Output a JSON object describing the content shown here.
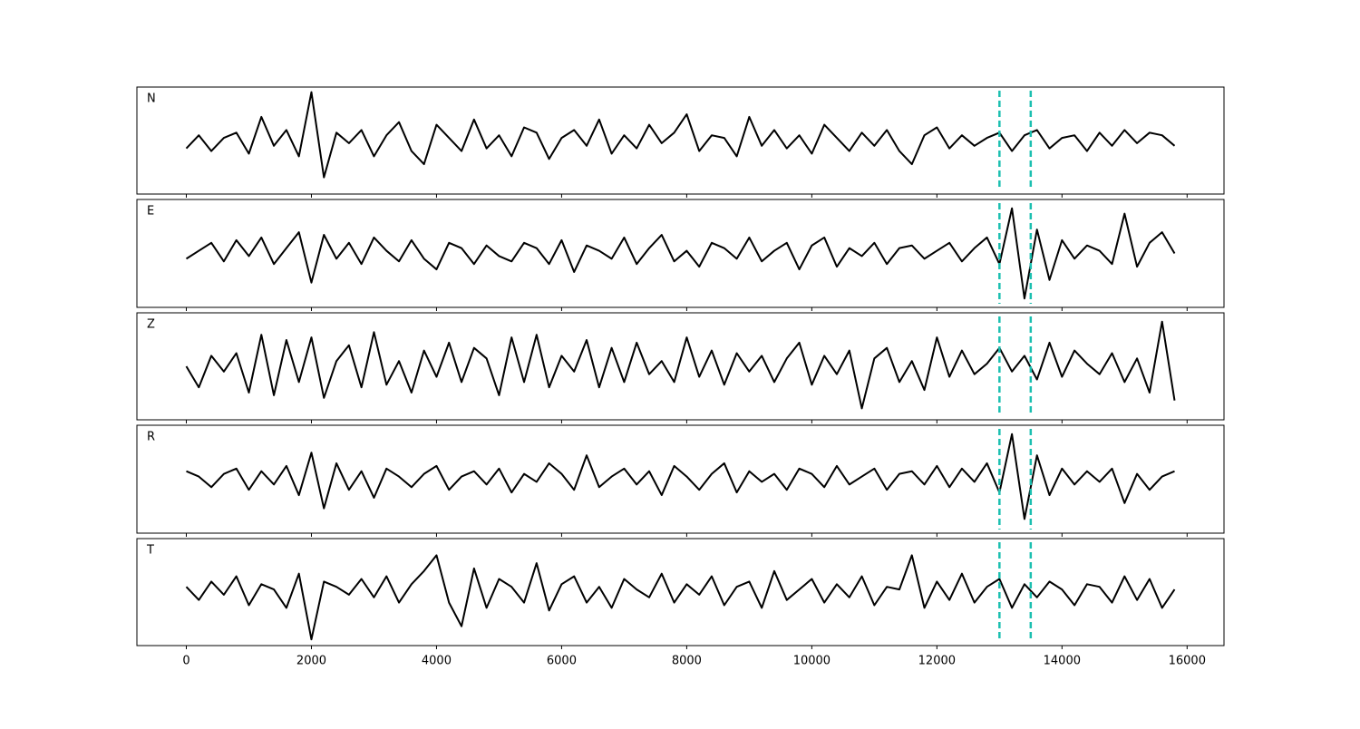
{
  "chart_data": {
    "type": "line",
    "x": [
      0,
      200,
      400,
      600,
      800,
      1000,
      1200,
      1400,
      1600,
      1800,
      2000,
      2200,
      2400,
      2600,
      2800,
      3000,
      3200,
      3400,
      3600,
      3800,
      4000,
      4200,
      4400,
      4600,
      4800,
      5000,
      5200,
      5400,
      5600,
      5800,
      6000,
      6200,
      6400,
      6600,
      6800,
      7000,
      7200,
      7400,
      7600,
      7800,
      8000,
      8200,
      8400,
      8600,
      8800,
      9000,
      9200,
      9400,
      9600,
      9800,
      10000,
      10200,
      10400,
      10600,
      10800,
      11000,
      11200,
      11400,
      11600,
      11800,
      12000,
      12200,
      12400,
      12600,
      12800,
      13000,
      13200,
      13400,
      13600,
      13800,
      14000,
      14200,
      14400,
      14600,
      14800,
      15000,
      15200,
      15400,
      15600,
      15800
    ],
    "xlim": [
      -790,
      16590
    ],
    "xticks": [
      0,
      2000,
      4000,
      6000,
      8000,
      10000,
      12000,
      14000,
      16000
    ],
    "ylim": [
      -1,
      1
    ],
    "color": "#000000",
    "markers": [
      13000,
      13500
    ],
    "marker_color": "#1bbfb0",
    "series": [
      {
        "name": "N",
        "values": [
          -0.15,
          0.1,
          -0.2,
          0.05,
          0.15,
          -0.25,
          0.45,
          -0.1,
          0.2,
          -0.3,
          0.92,
          -0.7,
          0.15,
          -0.05,
          0.2,
          -0.3,
          0.1,
          0.35,
          -0.2,
          -0.45,
          0.3,
          0.05,
          -0.2,
          0.4,
          -0.15,
          0.1,
          -0.3,
          0.25,
          0.15,
          -0.35,
          0.05,
          0.2,
          -0.1,
          0.4,
          -0.25,
          0.1,
          -0.15,
          0.3,
          -0.05,
          0.15,
          0.5,
          -0.2,
          0.1,
          0.05,
          -0.3,
          0.45,
          -0.1,
          0.2,
          -0.15,
          0.1,
          -0.25,
          0.3,
          0.05,
          -0.2,
          0.15,
          -0.1,
          0.2,
          -0.2,
          -0.45,
          0.1,
          0.25,
          -0.15,
          0.1,
          -0.1,
          0.05,
          0.15,
          -0.2,
          0.1,
          0.2,
          -0.15,
          0.05,
          0.1,
          -0.2,
          0.15,
          -0.1,
          0.2,
          -0.05,
          0.15,
          0.1,
          -0.1
        ]
      },
      {
        "name": "E",
        "values": [
          -0.1,
          0.05,
          0.2,
          -0.15,
          0.25,
          -0.05,
          0.3,
          -0.2,
          0.1,
          0.4,
          -0.55,
          0.35,
          -0.1,
          0.2,
          -0.2,
          0.3,
          0.05,
          -0.15,
          0.25,
          -0.1,
          -0.3,
          0.2,
          0.1,
          -0.2,
          0.15,
          -0.05,
          -0.15,
          0.2,
          0.1,
          -0.2,
          0.25,
          -0.35,
          0.15,
          0.05,
          -0.1,
          0.3,
          -0.2,
          0.1,
          0.35,
          -0.15,
          0.05,
          -0.25,
          0.2,
          0.1,
          -0.1,
          0.3,
          -0.15,
          0.05,
          0.2,
          -0.3,
          0.15,
          0.3,
          -0.25,
          0.1,
          -0.05,
          0.2,
          -0.2,
          0.1,
          0.15,
          -0.1,
          0.05,
          0.2,
          -0.15,
          0.1,
          0.3,
          -0.2,
          0.85,
          -0.85,
          0.45,
          -0.5,
          0.25,
          -0.1,
          0.15,
          0.05,
          -0.2,
          0.75,
          -0.25,
          0.2,
          0.4,
          0.0
        ]
      },
      {
        "name": "Z",
        "values": [
          0.0,
          -0.4,
          0.2,
          -0.1,
          0.25,
          -0.5,
          0.6,
          -0.55,
          0.5,
          -0.3,
          0.55,
          -0.6,
          0.1,
          0.4,
          -0.4,
          0.65,
          -0.35,
          0.1,
          -0.5,
          0.3,
          -0.2,
          0.45,
          -0.3,
          0.35,
          0.15,
          -0.55,
          0.55,
          -0.3,
          0.6,
          -0.4,
          0.2,
          -0.1,
          0.5,
          -0.4,
          0.35,
          -0.3,
          0.45,
          -0.15,
          0.1,
          -0.3,
          0.55,
          -0.2,
          0.3,
          -0.35,
          0.25,
          -0.1,
          0.2,
          -0.3,
          0.15,
          0.45,
          -0.35,
          0.2,
          -0.15,
          0.3,
          -0.8,
          0.15,
          0.35,
          -0.3,
          0.1,
          -0.45,
          0.55,
          -0.2,
          0.3,
          -0.15,
          0.05,
          0.35,
          -0.1,
          0.2,
          -0.25,
          0.45,
          -0.2,
          0.3,
          0.05,
          -0.15,
          0.25,
          -0.3,
          0.15,
          -0.5,
          0.85,
          -0.65
        ]
      },
      {
        "name": "R",
        "values": [
          0.15,
          0.05,
          -0.15,
          0.1,
          0.2,
          -0.2,
          0.15,
          -0.1,
          0.25,
          -0.3,
          0.5,
          -0.55,
          0.3,
          -0.2,
          0.15,
          -0.35,
          0.2,
          0.05,
          -0.15,
          0.1,
          0.25,
          -0.2,
          0.05,
          0.15,
          -0.1,
          0.2,
          -0.25,
          0.1,
          -0.05,
          0.3,
          0.1,
          -0.2,
          0.45,
          -0.15,
          0.05,
          0.2,
          -0.1,
          0.15,
          -0.3,
          0.25,
          0.05,
          -0.2,
          0.1,
          0.3,
          -0.25,
          0.15,
          -0.05,
          0.1,
          -0.2,
          0.2,
          0.1,
          -0.15,
          0.25,
          -0.1,
          0.05,
          0.2,
          -0.2,
          0.1,
          0.15,
          -0.1,
          0.25,
          -0.15,
          0.2,
          -0.05,
          0.3,
          -0.25,
          0.85,
          -0.75,
          0.45,
          -0.3,
          0.2,
          -0.1,
          0.15,
          -0.05,
          0.2,
          -0.45,
          0.1,
          -0.2,
          0.05,
          0.15
        ]
      },
      {
        "name": "T",
        "values": [
          0.1,
          -0.15,
          0.2,
          -0.05,
          0.3,
          -0.25,
          0.15,
          0.05,
          -0.3,
          0.35,
          -0.9,
          0.2,
          0.1,
          -0.05,
          0.25,
          -0.1,
          0.3,
          -0.2,
          0.15,
          0.4,
          0.7,
          -0.2,
          -0.65,
          0.45,
          -0.3,
          0.25,
          0.1,
          -0.2,
          0.55,
          -0.35,
          0.15,
          0.3,
          -0.2,
          0.1,
          -0.3,
          0.25,
          0.05,
          -0.1,
          0.35,
          -0.2,
          0.15,
          -0.05,
          0.3,
          -0.25,
          0.1,
          0.2,
          -0.3,
          0.4,
          -0.15,
          0.05,
          0.25,
          -0.2,
          0.15,
          -0.1,
          0.3,
          -0.25,
          0.1,
          0.05,
          0.7,
          -0.3,
          0.2,
          -0.15,
          0.35,
          -0.2,
          0.1,
          0.25,
          -0.3,
          0.15,
          -0.1,
          0.2,
          0.05,
          -0.25,
          0.15,
          0.1,
          -0.2,
          0.3,
          -0.15,
          0.25,
          -0.3,
          0.05
        ]
      }
    ]
  }
}
